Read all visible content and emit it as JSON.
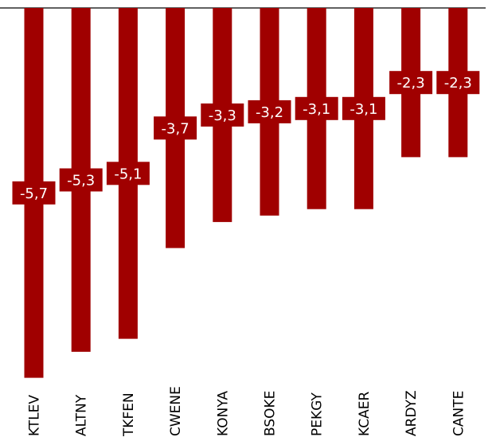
{
  "chart_data": {
    "type": "bar",
    "categories": [
      "KTLEV",
      "ALTNY",
      "TKFEN",
      "CWENE",
      "KONYA",
      "BSOKE",
      "PEKGY",
      "KCAER",
      "ARDYZ",
      "CANTE"
    ],
    "values": [
      -5.7,
      -5.3,
      -5.1,
      -3.7,
      -3.3,
      -3.2,
      -3.1,
      -3.1,
      -2.3,
      -2.3
    ],
    "data_labels": [
      "-5,7",
      "-5,3",
      "-5,1",
      "-3,7",
      "-3,3",
      "-3,2",
      "-3,1",
      "-3,1",
      "-2,3",
      "-2,3"
    ],
    "title": "",
    "xlabel": "",
    "ylabel": "",
    "ylim": [
      -6.2,
      0
    ],
    "grid": false,
    "legend": "none",
    "bar_color": "#a00000",
    "label_bg_color": "#a00000",
    "label_text_color": "#ffffff"
  }
}
